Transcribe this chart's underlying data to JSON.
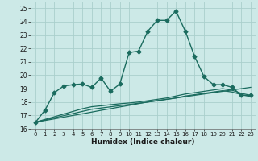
{
  "title": "",
  "xlabel": "Humidex (Indice chaleur)",
  "ylabel": "",
  "xlim": [
    -0.5,
    23.5
  ],
  "ylim": [
    16,
    25.5
  ],
  "xticks": [
    0,
    1,
    2,
    3,
    4,
    5,
    6,
    7,
    8,
    9,
    10,
    11,
    12,
    13,
    14,
    15,
    16,
    17,
    18,
    19,
    20,
    21,
    22,
    23
  ],
  "yticks": [
    16,
    17,
    18,
    19,
    20,
    21,
    22,
    23,
    24,
    25
  ],
  "bg_color": "#cce9e7",
  "grid_color": "#aacfcc",
  "line_color": "#1a6b5e",
  "series": [
    {
      "x": [
        0,
        1,
        2,
        3,
        4,
        5,
        6,
        7,
        8,
        9,
        10,
        11,
        12,
        13,
        14,
        15,
        16,
        17,
        18,
        19,
        20,
        21,
        22,
        23
      ],
      "y": [
        16.5,
        17.4,
        18.7,
        19.2,
        19.3,
        19.35,
        19.1,
        19.8,
        18.8,
        19.35,
        21.7,
        21.8,
        23.3,
        24.1,
        24.1,
        24.8,
        23.3,
        21.4,
        19.9,
        19.3,
        19.3,
        19.1,
        18.5,
        18.5
      ],
      "marker": "D",
      "markersize": 2.5,
      "linewidth": 1.0,
      "zorder": 4
    },
    {
      "x": [
        0,
        1,
        2,
        3,
        4,
        5,
        6,
        7,
        8,
        9,
        10,
        11,
        12,
        13,
        14,
        15,
        16,
        17,
        18,
        19,
        20,
        21,
        22,
        23
      ],
      "y": [
        16.5,
        16.62,
        16.74,
        16.87,
        17.0,
        17.12,
        17.25,
        17.38,
        17.5,
        17.63,
        17.75,
        17.88,
        18.0,
        18.1,
        18.2,
        18.3,
        18.4,
        18.5,
        18.6,
        18.7,
        18.8,
        18.9,
        19.0,
        19.1
      ],
      "marker": "None",
      "markersize": 0,
      "linewidth": 0.9,
      "zorder": 3
    },
    {
      "x": [
        0,
        1,
        2,
        3,
        4,
        5,
        6,
        7,
        8,
        9,
        10,
        11,
        12,
        13,
        14,
        15,
        16,
        17,
        18,
        19,
        20,
        21,
        22,
        23
      ],
      "y": [
        16.5,
        16.66,
        16.82,
        16.98,
        17.14,
        17.3,
        17.46,
        17.55,
        17.64,
        17.73,
        17.82,
        17.91,
        18.0,
        18.1,
        18.2,
        18.3,
        18.45,
        18.55,
        18.65,
        18.75,
        18.85,
        18.75,
        18.55,
        18.4
      ],
      "marker": "None",
      "markersize": 0,
      "linewidth": 0.9,
      "zorder": 3
    },
    {
      "x": [
        0,
        1,
        2,
        3,
        4,
        5,
        6,
        7,
        8,
        9,
        10,
        11,
        12,
        13,
        14,
        15,
        16,
        17,
        18,
        19,
        20,
        21,
        22,
        23
      ],
      "y": [
        16.5,
        16.7,
        16.9,
        17.1,
        17.3,
        17.5,
        17.65,
        17.72,
        17.8,
        17.87,
        17.93,
        18.0,
        18.1,
        18.2,
        18.3,
        18.45,
        18.6,
        18.7,
        18.8,
        18.9,
        19.0,
        18.88,
        18.65,
        18.5
      ],
      "marker": "None",
      "markersize": 0,
      "linewidth": 0.9,
      "zorder": 3
    }
  ]
}
